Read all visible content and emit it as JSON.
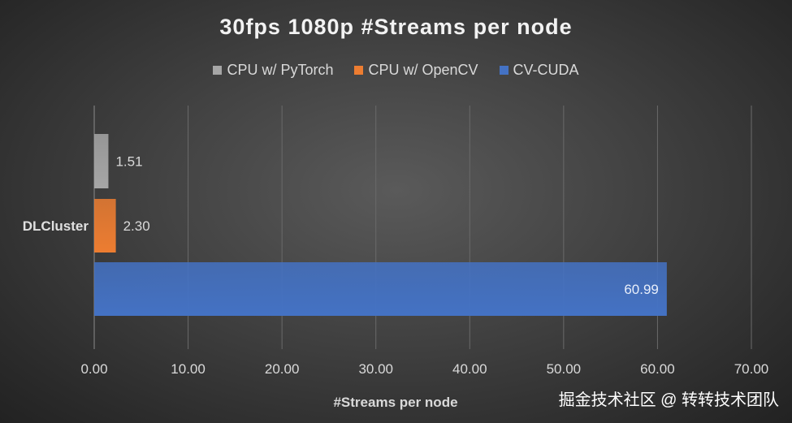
{
  "chart_data": {
    "type": "bar",
    "orientation": "horizontal",
    "title": "30fps 1080p #Streams per node",
    "xlabel": "#Streams per node",
    "ylabel": "",
    "categories": [
      "DLCluster"
    ],
    "series": [
      {
        "name": "CPU w/ PyTorch",
        "values": [
          1.51
        ],
        "labels": [
          "1.51"
        ],
        "color": "#a6a6a6"
      },
      {
        "name": "CPU w/ OpenCV",
        "values": [
          2.3
        ],
        "labels": [
          "2.30"
        ],
        "color": "#ed7d31"
      },
      {
        "name": "CV-CUDA",
        "values": [
          60.99
        ],
        "labels": [
          "60.99"
        ],
        "color": "#4472c4"
      }
    ],
    "xlim": [
      0,
      70
    ],
    "xticks": [
      "0.00",
      "10.00",
      "20.00",
      "30.00",
      "40.00",
      "50.00",
      "60.00",
      "70.00"
    ],
    "grid": true,
    "legend_position": "top"
  },
  "watermark": "掘金技术社区 @ 转转技术团队"
}
